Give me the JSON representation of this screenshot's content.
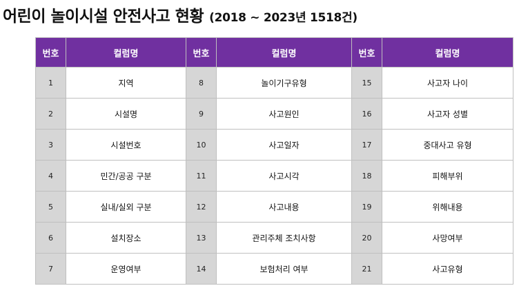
{
  "title": {
    "main": "어린이 놀이시설 안전사고 현황",
    "sub": "(2018 ~ 2023년 1518건)"
  },
  "table": {
    "headers": [
      "번호",
      "컬럼명",
      "번호",
      "컬럼명",
      "번호",
      "컬럼명"
    ],
    "rows": [
      [
        {
          "num": "1",
          "name": "지역"
        },
        {
          "num": "8",
          "name": "놀이기구유형"
        },
        {
          "num": "15",
          "name": "사고자 나이"
        }
      ],
      [
        {
          "num": "2",
          "name": "시설명"
        },
        {
          "num": "9",
          "name": "사고원인"
        },
        {
          "num": "16",
          "name": "사고자 성별"
        }
      ],
      [
        {
          "num": "3",
          "name": "시설번호"
        },
        {
          "num": "10",
          "name": "사고일자"
        },
        {
          "num": "17",
          "name": "중대사고 유형"
        }
      ],
      [
        {
          "num": "4",
          "name": "민간/공공 구분"
        },
        {
          "num": "11",
          "name": "사고시각"
        },
        {
          "num": "18",
          "name": "피해부위"
        }
      ],
      [
        {
          "num": "5",
          "name": "실내/실외 구분"
        },
        {
          "num": "12",
          "name": "사고내용"
        },
        {
          "num": "19",
          "name": "위해내용"
        }
      ],
      [
        {
          "num": "6",
          "name": "설치장소"
        },
        {
          "num": "13",
          "name": "관리주체 조치사항"
        },
        {
          "num": "20",
          "name": "사망여부"
        }
      ],
      [
        {
          "num": "7",
          "name": "운영여부"
        },
        {
          "num": "14",
          "name": "보험처리 여부"
        },
        {
          "num": "21",
          "name": "사고유형"
        }
      ]
    ]
  },
  "colors": {
    "header_bg": "#7030a0",
    "number_bg": "#d6d6d6"
  }
}
